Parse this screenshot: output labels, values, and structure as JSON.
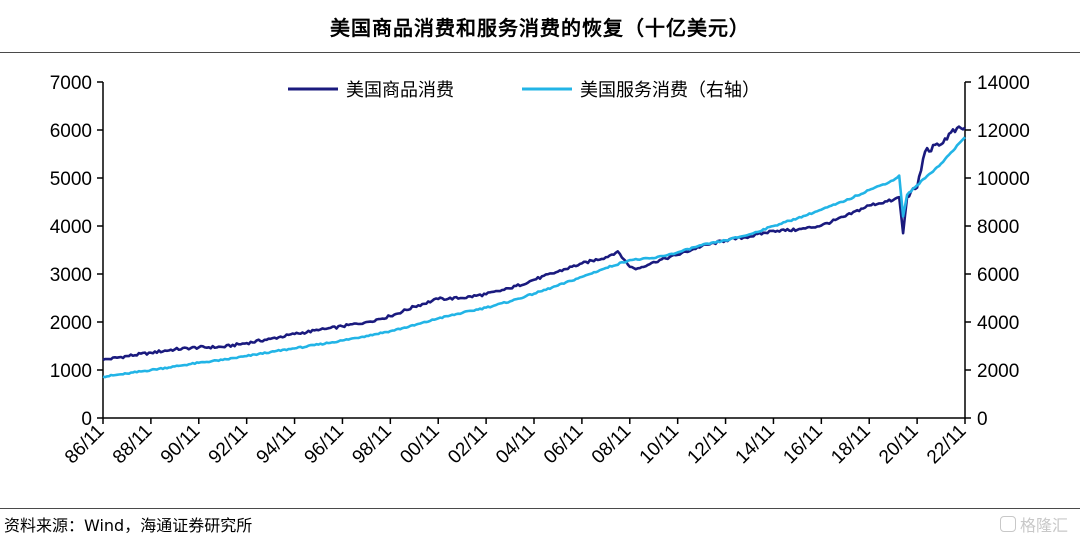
{
  "header": {
    "title": "美国商品消费和服务消费的恢复（十亿美元）"
  },
  "footer": {
    "source": "资料来源：Wind，海通证券研究所",
    "watermark": "格隆汇"
  },
  "colors": {
    "goods": "#1a1a7e",
    "services": "#22b4e6",
    "axis": "#000000"
  },
  "chart_data": {
    "type": "line",
    "title": "美国商品消费和服务消费的恢复（十亿美元）",
    "x_ticks": [
      "86/11",
      "88/11",
      "90/11",
      "92/11",
      "94/11",
      "96/11",
      "98/11",
      "00/11",
      "02/11",
      "04/11",
      "06/11",
      "08/11",
      "10/11",
      "12/11",
      "14/11",
      "16/11",
      "18/11",
      "20/11",
      "22/11"
    ],
    "y_left": {
      "ylim": [
        0,
        7000
      ],
      "ticks": [
        0,
        1000,
        2000,
        3000,
        4000,
        5000,
        6000,
        7000
      ]
    },
    "y_right": {
      "ylim": [
        0,
        14000
      ],
      "ticks": [
        0,
        2000,
        4000,
        6000,
        8000,
        10000,
        12000,
        14000
      ],
      "label": "右轴"
    },
    "legend": {
      "placement": "top-center"
    },
    "grid": false,
    "series": [
      {
        "name": "美国商品消费",
        "axis": "left",
        "points": [
          [
            "1986-11",
            1210
          ],
          [
            "1987-11",
            1290
          ],
          [
            "1988-11",
            1360
          ],
          [
            "1989-11",
            1430
          ],
          [
            "1990-11",
            1470
          ],
          [
            "1991-11",
            1480
          ],
          [
            "1992-11",
            1560
          ],
          [
            "1993-11",
            1650
          ],
          [
            "1994-11",
            1750
          ],
          [
            "1995-11",
            1830
          ],
          [
            "1996-11",
            1910
          ],
          [
            "1997-11",
            2000
          ],
          [
            "1998-11",
            2120
          ],
          [
            "1999-11",
            2320
          ],
          [
            "2000-11",
            2480
          ],
          [
            "2001-11",
            2500
          ],
          [
            "2002-11",
            2580
          ],
          [
            "2003-11",
            2700
          ],
          [
            "2004-11",
            2880
          ],
          [
            "2005-11",
            3050
          ],
          [
            "2006-11",
            3220
          ],
          [
            "2007-11",
            3350
          ],
          [
            "2008-05",
            3470
          ],
          [
            "2008-11",
            3150
          ],
          [
            "2009-02",
            3100
          ],
          [
            "2009-11",
            3250
          ],
          [
            "2010-11",
            3400
          ],
          [
            "2011-11",
            3580
          ],
          [
            "2012-11",
            3700
          ],
          [
            "2013-11",
            3780
          ],
          [
            "2014-11",
            3900
          ],
          [
            "2015-11",
            3920
          ],
          [
            "2016-11",
            4010
          ],
          [
            "2017-11",
            4200
          ],
          [
            "2018-11",
            4430
          ],
          [
            "2019-11",
            4540
          ],
          [
            "2020-02",
            4600
          ],
          [
            "2020-04",
            3850
          ],
          [
            "2020-06",
            4600
          ],
          [
            "2020-11",
            4800
          ],
          [
            "2021-03",
            5550
          ],
          [
            "2021-11",
            5700
          ],
          [
            "2022-04",
            5950
          ],
          [
            "2022-11",
            6050
          ]
        ]
      },
      {
        "name": "美国服务消费（右轴）",
        "axis": "right",
        "points": [
          [
            "1986-11",
            1720
          ],
          [
            "1987-11",
            1850
          ],
          [
            "1988-11",
            2000
          ],
          [
            "1989-11",
            2150
          ],
          [
            "1990-11",
            2300
          ],
          [
            "1991-11",
            2420
          ],
          [
            "1992-11",
            2580
          ],
          [
            "1993-11",
            2750
          ],
          [
            "1994-11",
            2900
          ],
          [
            "1995-11",
            3060
          ],
          [
            "1996-11",
            3230
          ],
          [
            "1997-11",
            3420
          ],
          [
            "1998-11",
            3620
          ],
          [
            "1999-11",
            3860
          ],
          [
            "2000-11",
            4150
          ],
          [
            "2001-11",
            4380
          ],
          [
            "2002-11",
            4600
          ],
          [
            "2003-11",
            4860
          ],
          [
            "2004-11",
            5180
          ],
          [
            "2005-11",
            5520
          ],
          [
            "2006-11",
            5880
          ],
          [
            "2007-11",
            6250
          ],
          [
            "2008-11",
            6580
          ],
          [
            "2009-11",
            6660
          ],
          [
            "2010-11",
            6900
          ],
          [
            "2011-11",
            7200
          ],
          [
            "2012-11",
            7400
          ],
          [
            "2013-11",
            7650
          ],
          [
            "2014-11",
            8000
          ],
          [
            "2015-11",
            8320
          ],
          [
            "2016-11",
            8680
          ],
          [
            "2017-11",
            9050
          ],
          [
            "2018-11",
            9500
          ],
          [
            "2019-11",
            9900
          ],
          [
            "2020-02",
            10100
          ],
          [
            "2020-04",
            8400
          ],
          [
            "2020-06",
            9300
          ],
          [
            "2020-11",
            9700
          ],
          [
            "2021-11",
            10600
          ],
          [
            "2022-11",
            11700
          ]
        ]
      }
    ]
  }
}
